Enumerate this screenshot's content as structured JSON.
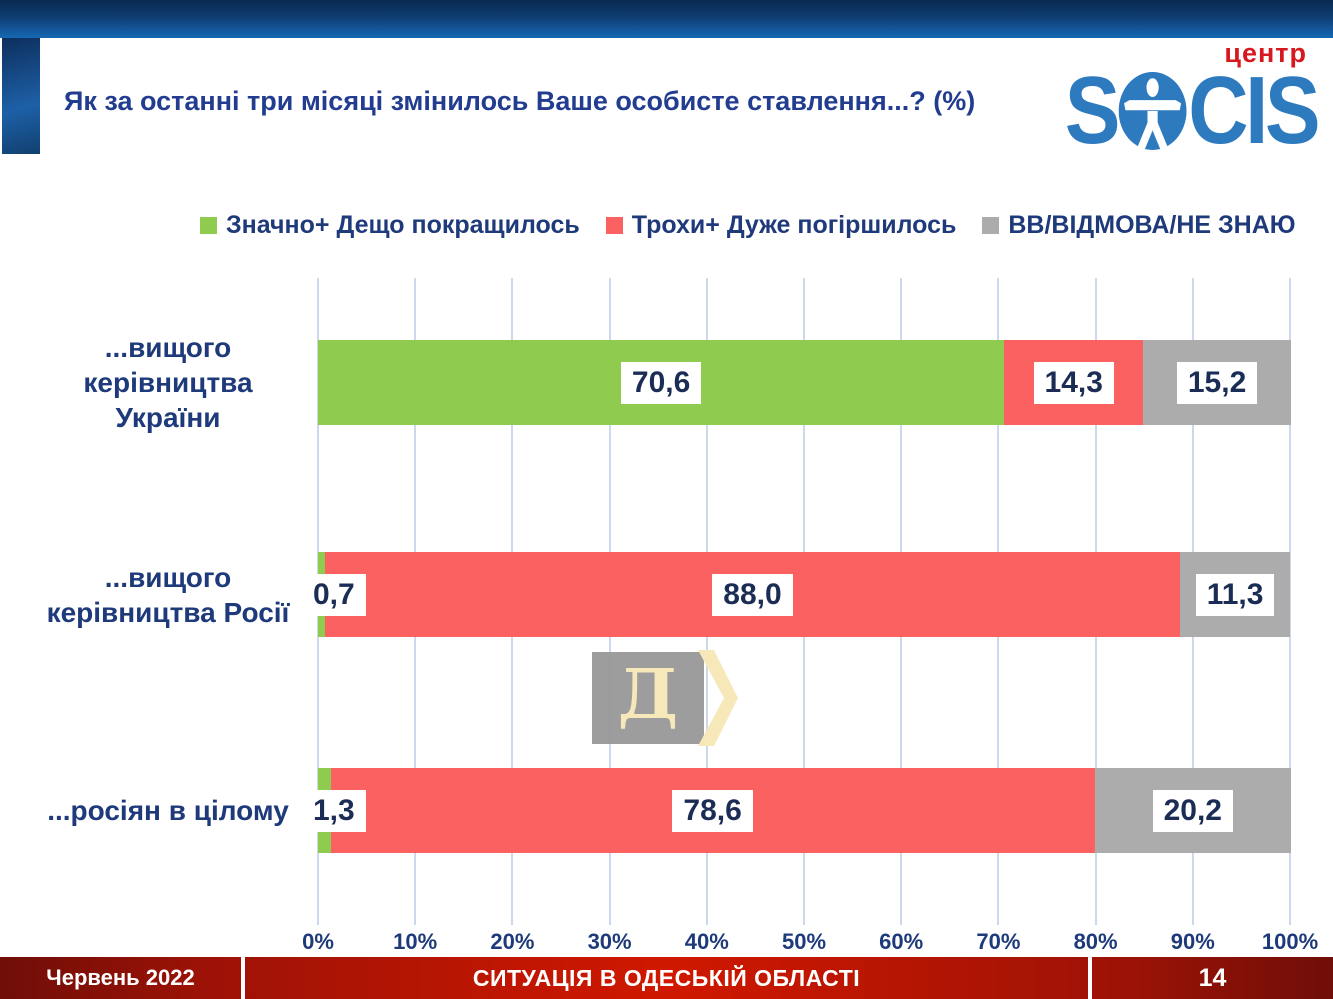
{
  "header": {
    "title": "Як за останні три місяці змінилось Ваше особисте ставлення...? (%)",
    "logo": {
      "brand_prefix": "S",
      "brand_suffix": "CIS",
      "tagline": "центр",
      "brand_color": "#2e7abf",
      "tagline_color": "#d7191f"
    }
  },
  "chart_data": {
    "type": "bar",
    "orientation": "horizontal-stacked",
    "title": "Як за останні три місяці змінилось Ваше особисте ставлення...? (%)",
    "categories": [
      "...вищого керівництва України",
      "...вищого керівництва Росії",
      "...росіян в цілому"
    ],
    "categories_display": [
      [
        "...вищого",
        "керівництва України"
      ],
      [
        "...вищого",
        "керівництва Росії"
      ],
      [
        "...росіян в цілому"
      ]
    ],
    "series": [
      {
        "name": "Значно+ Дещо покращилось",
        "color": "#8ecb4f",
        "values": [
          70.6,
          0.7,
          1.3
        ],
        "labels": [
          "70,6",
          "0,7",
          "1,3"
        ]
      },
      {
        "name": "Трохи+ Дуже погіршилось",
        "color": "#fc6161",
        "values": [
          14.3,
          88.0,
          78.6
        ],
        "labels": [
          "14,3",
          "88,0",
          "78,6"
        ]
      },
      {
        "name": "ВВ/ВІДМОВА/НЕ ЗНАЮ",
        "color": "#acacac",
        "values": [
          15.2,
          11.3,
          20.2
        ],
        "labels": [
          "15,2",
          "11,3",
          "20,2"
        ]
      }
    ],
    "x_ticks": [
      "0%",
      "10%",
      "20%",
      "30%",
      "40%",
      "50%",
      "60%",
      "70%",
      "80%",
      "90%",
      "100%"
    ],
    "xlim": [
      0,
      100
    ],
    "grid": true,
    "gridline_color": "#ccd9ed",
    "legend_position": "top",
    "value_text_color": "#1b2c55",
    "axis_text_color": "#1e3a7a"
  },
  "watermark": {
    "letter": "Д"
  },
  "footer": {
    "date": "Червень 2022",
    "title": "СИТУАЦІЯ В ОДЕСЬКІЙ ОБЛАСТІ",
    "page_number": "14",
    "bar_color": "#c01400"
  }
}
